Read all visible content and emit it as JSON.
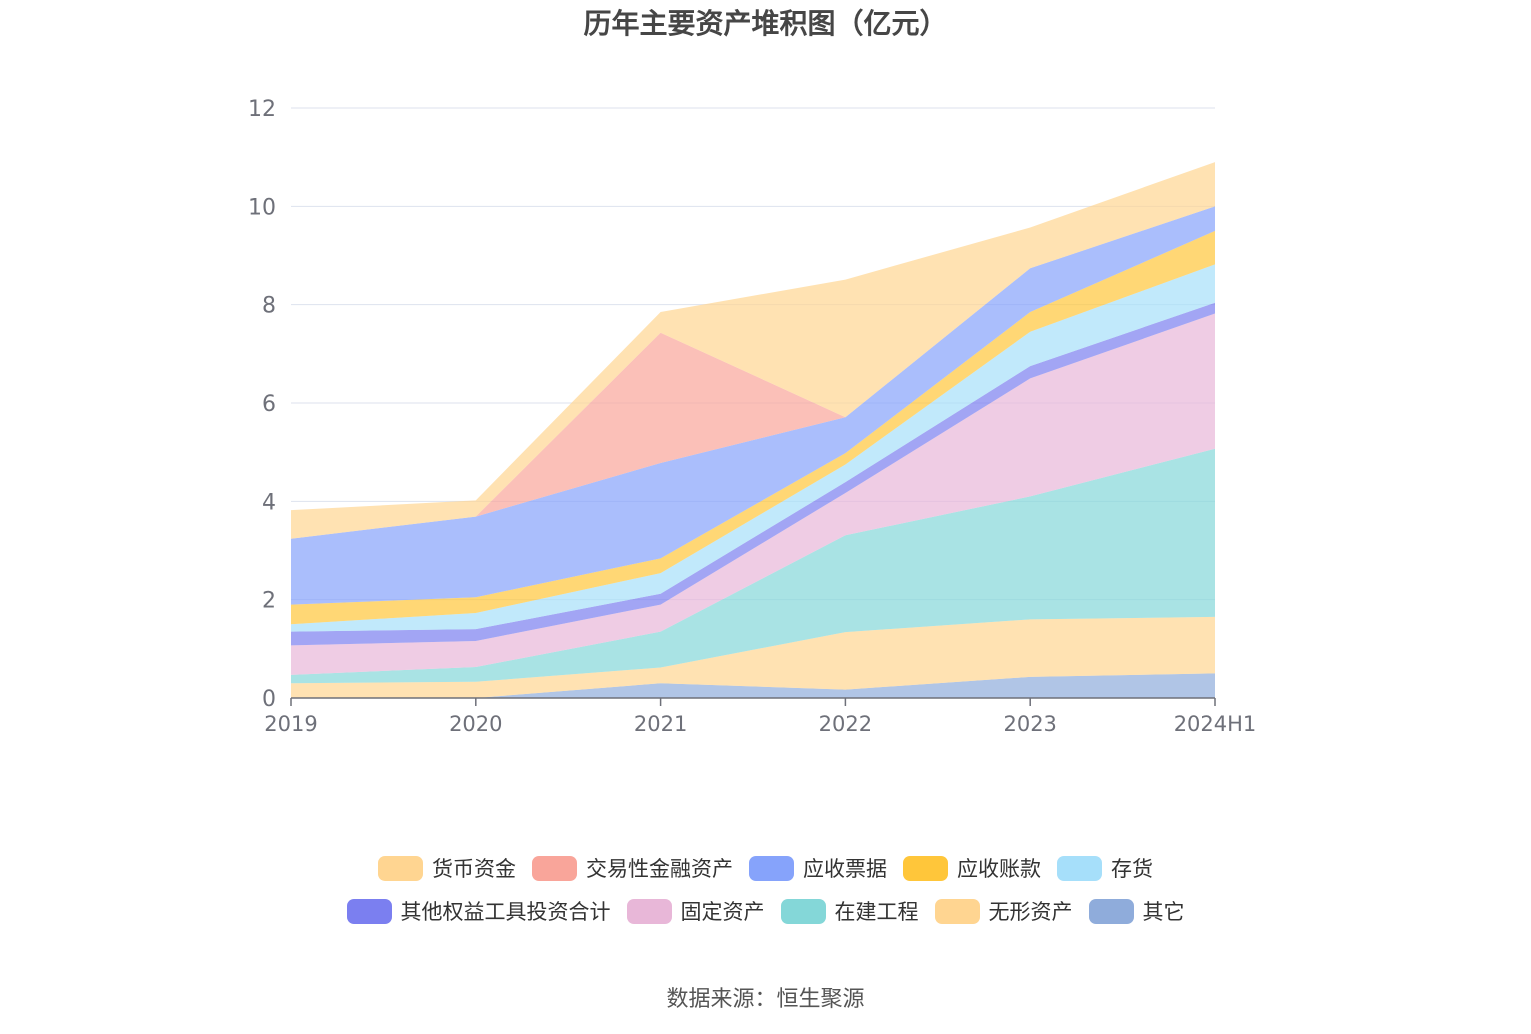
{
  "colors": {
    "grid": "#dde2ee",
    "axis": "#6e7079",
    "tick_label": "#6e7079"
  },
  "chart_data": {
    "type": "area",
    "stacked": true,
    "title": "历年主要资产堆积图（亿元）",
    "xlabel": "",
    "ylabel": "",
    "categories": [
      "2019",
      "2020",
      "2021",
      "2022",
      "2023",
      "2024H1"
    ],
    "ylim": [
      0,
      12
    ],
    "yticks": [
      0,
      2,
      4,
      6,
      8,
      10,
      12
    ],
    "grid": true,
    "legend_position": "bottom",
    "series": [
      {
        "name": "其它",
        "color": "#8facdb",
        "values": [
          0.0,
          0.0,
          0.3,
          0.17,
          0.43,
          0.5
        ]
      },
      {
        "name": "无形资产",
        "color": "#ffd591",
        "values": [
          0.3,
          0.33,
          0.32,
          1.17,
          1.17,
          1.15
        ]
      },
      {
        "name": "在建工程",
        "color": "#84d7d8",
        "values": [
          0.17,
          0.3,
          0.73,
          1.97,
          2.5,
          3.42
        ]
      },
      {
        "name": "固定资产",
        "color": "#e8b7d8",
        "values": [
          0.6,
          0.53,
          0.55,
          0.86,
          2.4,
          2.75
        ]
      },
      {
        "name": "其他权益工具投资合计",
        "color": "#7b7ff0",
        "values": [
          0.28,
          0.24,
          0.22,
          0.22,
          0.25,
          0.22
        ]
      },
      {
        "name": "存货",
        "color": "#a6dffa",
        "values": [
          0.15,
          0.33,
          0.42,
          0.36,
          0.7,
          0.78
        ]
      },
      {
        "name": "应收账款",
        "color": "#ffc63a",
        "values": [
          0.4,
          0.32,
          0.3,
          0.23,
          0.4,
          0.68
        ]
      },
      {
        "name": "应收票据",
        "color": "#86a3fb",
        "values": [
          1.34,
          1.64,
          1.94,
          0.73,
          0.89,
          0.5
        ]
      },
      {
        "name": "交易性金融资产",
        "color": "#f9a59a",
        "values": [
          0.0,
          0.0,
          2.65,
          0.0,
          0.0,
          0.0
        ]
      },
      {
        "name": "货币资金",
        "color": "#ffd591",
        "values": [
          0.58,
          0.33,
          0.42,
          2.8,
          0.83,
          0.9
        ]
      }
    ]
  },
  "legend": {
    "rows": [
      [
        {
          "name": "货币资金",
          "color": "#ffd591"
        },
        {
          "name": "交易性金融资产",
          "color": "#f9a59a"
        },
        {
          "name": "应收票据",
          "color": "#86a3fb"
        },
        {
          "name": "应收账款",
          "color": "#ffc63a"
        },
        {
          "name": "存货",
          "color": "#a6dffa"
        }
      ],
      [
        {
          "name": "其他权益工具投资合计",
          "color": "#7b7ff0"
        },
        {
          "name": "固定资产",
          "color": "#e8b7d8"
        },
        {
          "name": "在建工程",
          "color": "#84d7d8"
        },
        {
          "name": "无形资产",
          "color": "#ffd591"
        },
        {
          "name": "其它",
          "color": "#8facdb"
        }
      ]
    ]
  },
  "source": "数据来源：恒生聚源"
}
